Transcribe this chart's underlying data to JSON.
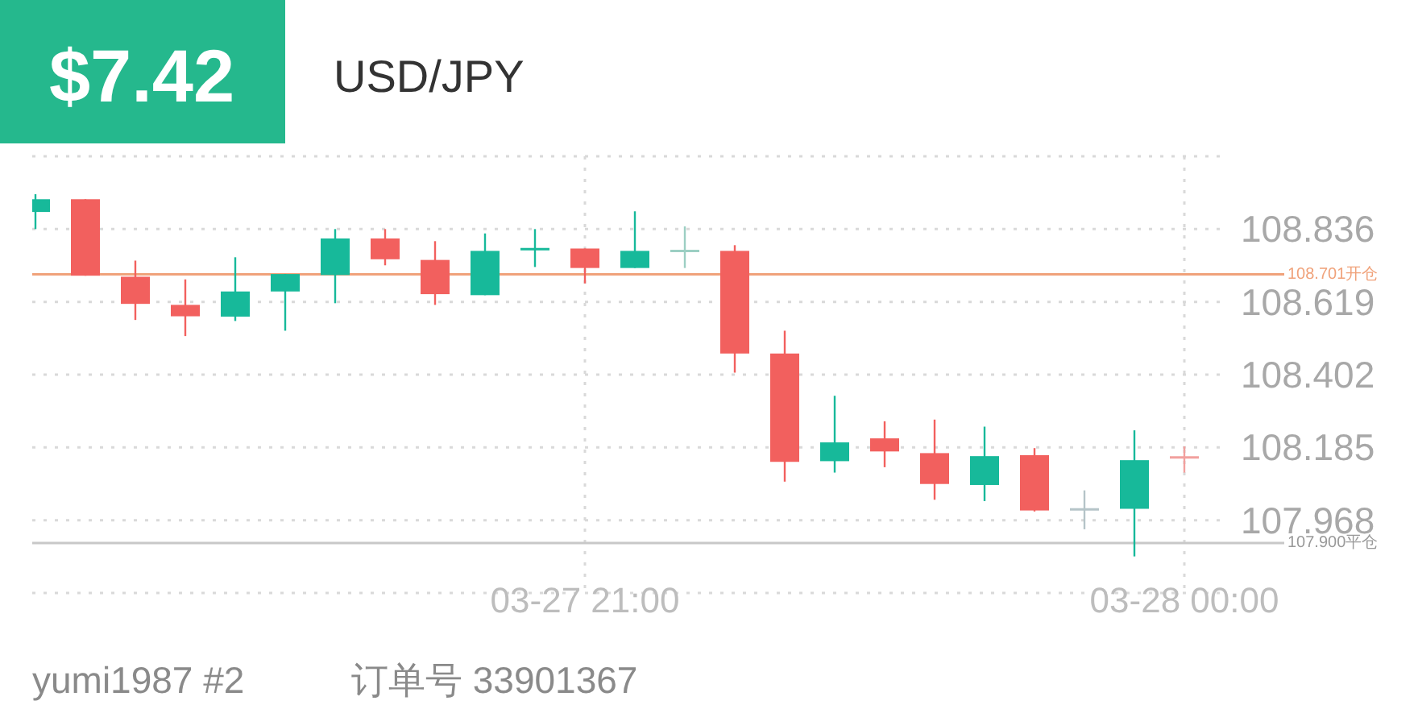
{
  "chart_data": {
    "type": "candlestick",
    "title": "USD/JPY",
    "categories": [
      null,
      null,
      null,
      null,
      null,
      null,
      null,
      null,
      null,
      null,
      null,
      "03-27 21:00",
      null,
      null,
      null,
      null,
      null,
      null,
      null,
      null,
      null,
      null,
      null,
      "03-28 00:00"
    ],
    "ohlc": [
      [
        108.887,
        108.94,
        108.836,
        108.925
      ],
      [
        108.925,
        108.925,
        108.697,
        108.697
      ],
      [
        108.694,
        108.742,
        108.565,
        108.613
      ],
      [
        108.61,
        108.686,
        108.517,
        108.576
      ],
      [
        108.575,
        108.752,
        108.562,
        108.65
      ],
      [
        108.65,
        108.702,
        108.533,
        108.702
      ],
      [
        108.699,
        108.836,
        108.615,
        108.808
      ],
      [
        108.808,
        108.836,
        108.728,
        108.746
      ],
      [
        108.744,
        108.8,
        108.61,
        108.642
      ],
      [
        108.639,
        108.823,
        108.639,
        108.771
      ],
      [
        108.776,
        108.836,
        108.723,
        108.776
      ],
      [
        108.778,
        108.778,
        108.674,
        108.72
      ],
      [
        108.72,
        108.889,
        108.72,
        108.771
      ],
      [
        108.771,
        108.844,
        108.72,
        108.771
      ],
      [
        108.771,
        108.788,
        108.408,
        108.465
      ],
      [
        108.465,
        108.533,
        108.083,
        108.142
      ],
      [
        108.144,
        108.339,
        108.11,
        108.2
      ],
      [
        108.212,
        108.263,
        108.126,
        108.173
      ],
      [
        108.168,
        108.268,
        108.029,
        108.076
      ],
      [
        108.073,
        108.247,
        108.025,
        108.159
      ],
      [
        108.162,
        108.183,
        107.994,
        107.997
      ],
      [
        108.0,
        108.057,
        107.941,
        108.0
      ],
      [
        108.002,
        108.236,
        107.86,
        108.147
      ],
      [
        108.155,
        108.188,
        108.11,
        108.155
      ]
    ],
    "colors": [
      "#17b99a",
      "#f2605e",
      "#f2605e",
      "#f2605e",
      "#17b99a",
      "#17b99a",
      "#17b99a",
      "#f2605e",
      "#f2605e",
      "#17b99a",
      "#17b99a",
      "#f2605e",
      "#17b99a",
      "#9ccfc3",
      "#f2605e",
      "#f2605e",
      "#17b99a",
      "#f2605e",
      "#f2605e",
      "#17b99a",
      "#f2605e",
      "#b5c4c8",
      "#17b99a",
      "#f2a09e"
    ],
    "ylim": [
      107.751,
      109.053
    ],
    "yticks": [
      {
        "value": 107.751,
        "label": null
      },
      107.968,
      108.185,
      108.402,
      108.619,
      108.836,
      {
        "value": 109.053,
        "label": null
      }
    ],
    "grid": true,
    "ref_lines": [
      {
        "axis": "y",
        "value": 108.701,
        "label": "108.701开仓",
        "color": "#f0a27a"
      },
      {
        "axis": "y",
        "value": 107.9,
        "label": "107.900平仓",
        "color": "#c8c8c8"
      }
    ],
    "annotations": [
      "$7.42",
      "yumi1987 #2",
      "订单号 33901367"
    ]
  }
}
